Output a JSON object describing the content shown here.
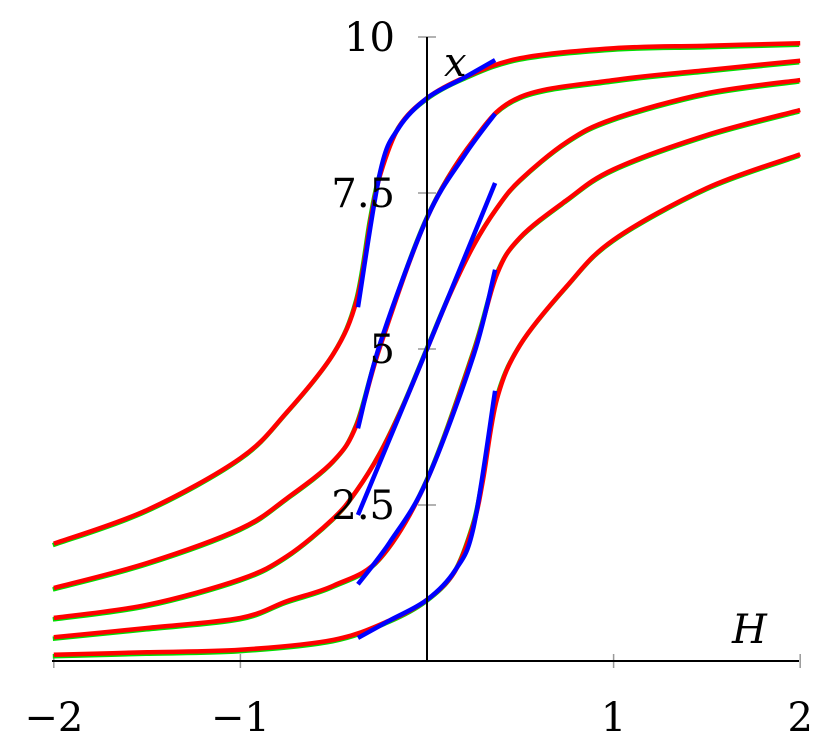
{
  "chart_data": {
    "type": "line",
    "xlabel": "H",
    "ylabel": "x",
    "xlim": [
      -2,
      2
    ],
    "ylim": [
      0,
      10
    ],
    "x_ticks": [
      {
        "value": -2,
        "label": "−2"
      },
      {
        "value": -1,
        "label": "−1"
      },
      {
        "value": 1,
        "label": "1"
      },
      {
        "value": 2,
        "label": "2"
      }
    ],
    "y_ticks": [
      {
        "value": 2.5,
        "label": "2.5"
      },
      {
        "value": 5,
        "label": "5"
      },
      {
        "value": 7.5,
        "label": "7.5"
      },
      {
        "value": 10,
        "label": "10"
      }
    ],
    "grid": false,
    "axes_through_origin": true,
    "colors": {
      "red": "#ff0000",
      "blue": "#0000ff",
      "green_underlay": "#00dd00",
      "axis": "#000000",
      "tick": "#999999"
    },
    "series": [
      {
        "color": "red",
        "points": [
          [
            -2,
            1.88
          ],
          [
            -1.5,
            2.42
          ],
          [
            -1,
            3.25
          ],
          [
            -0.75,
            3.99
          ],
          [
            -0.5,
            4.93
          ],
          [
            -0.375,
            5.8
          ],
          [
            -0.3,
            7.1
          ],
          [
            -0.25,
            7.8
          ],
          [
            -0.15,
            8.56
          ],
          [
            0,
            9.02
          ],
          [
            0.2,
            9.35
          ],
          [
            0.5,
            9.66
          ],
          [
            1,
            9.82
          ],
          [
            1.5,
            9.86
          ],
          [
            2,
            9.9
          ]
        ]
      },
      {
        "color": "red",
        "points": [
          [
            -2,
            1.17
          ],
          [
            -1.5,
            1.57
          ],
          [
            -1,
            2.12
          ],
          [
            -0.75,
            2.61
          ],
          [
            -0.5,
            3.21
          ],
          [
            -0.375,
            3.8
          ],
          [
            -0.25,
            5.05
          ],
          [
            0,
            7.1
          ],
          [
            0.25,
            8.35
          ],
          [
            0.5,
            9.04
          ],
          [
            1,
            9.31
          ],
          [
            1.5,
            9.47
          ],
          [
            2,
            9.62
          ]
        ]
      },
      {
        "color": "red",
        "points": [
          [
            -2,
            0.69
          ],
          [
            -1.5,
            0.9
          ],
          [
            -1,
            1.31
          ],
          [
            -0.75,
            1.68
          ],
          [
            -0.5,
            2.29
          ],
          [
            -0.375,
            2.74
          ],
          [
            -0.25,
            3.34
          ],
          [
            -0.125,
            4.11
          ],
          [
            0,
            5
          ],
          [
            0.125,
            5.89
          ],
          [
            0.25,
            6.66
          ],
          [
            0.375,
            7.26
          ],
          [
            0.5,
            7.71
          ],
          [
            0.75,
            8.32
          ],
          [
            1,
            8.69
          ],
          [
            1.5,
            9.1
          ],
          [
            2,
            9.31
          ]
        ]
      },
      {
        "color": "red",
        "points": [
          [
            -2,
            0.38
          ],
          [
            -1.5,
            0.53
          ],
          [
            -1,
            0.69
          ],
          [
            -0.75,
            0.96
          ],
          [
            -0.5,
            1.21
          ],
          [
            -0.25,
            1.65
          ],
          [
            0,
            2.9
          ],
          [
            0.25,
            4.95
          ],
          [
            0.375,
            6.2
          ],
          [
            0.5,
            6.79
          ],
          [
            0.75,
            7.39
          ],
          [
            1,
            7.88
          ],
          [
            1.5,
            8.43
          ],
          [
            2,
            8.83
          ]
        ]
      },
      {
        "color": "red",
        "points": [
          [
            -2,
            0.1
          ],
          [
            -1.5,
            0.14
          ],
          [
            -1,
            0.18
          ],
          [
            -0.5,
            0.34
          ],
          [
            -0.2,
            0.65
          ],
          [
            0,
            0.98
          ],
          [
            0.15,
            1.44
          ],
          [
            0.25,
            2.2
          ],
          [
            0.3,
            2.9
          ],
          [
            0.375,
            4.2
          ],
          [
            0.5,
            5.07
          ],
          [
            0.75,
            6.01
          ],
          [
            1,
            6.75
          ],
          [
            1.5,
            7.58
          ],
          [
            2,
            8.12
          ]
        ]
      },
      {
        "color": "blue",
        "points": [
          [
            -0.37,
            5.67
          ],
          [
            -0.25,
            7.85
          ],
          [
            -0.15,
            8.55
          ],
          [
            0,
            9.02
          ],
          [
            0.2,
            9.35
          ],
          [
            0.365,
            9.63
          ]
        ]
      },
      {
        "color": "blue",
        "points": [
          [
            -0.37,
            3.73
          ],
          [
            -0.25,
            5.1
          ],
          [
            0,
            7.1
          ],
          [
            0.2,
            8.1
          ],
          [
            0.365,
            8.77
          ]
        ]
      },
      {
        "color": "blue",
        "points": [
          [
            -0.37,
            2.34
          ],
          [
            0,
            5
          ],
          [
            0.365,
            7.66
          ]
        ]
      },
      {
        "color": "blue",
        "points": [
          [
            -0.37,
            1.23
          ],
          [
            -0.2,
            1.9
          ],
          [
            0,
            2.9
          ],
          [
            0.25,
            4.9
          ],
          [
            0.365,
            6.27
          ]
        ]
      },
      {
        "color": "blue",
        "points": [
          [
            -0.37,
            0.37
          ],
          [
            -0.2,
            0.65
          ],
          [
            0,
            0.98
          ],
          [
            0.15,
            1.45
          ],
          [
            0.25,
            2.15
          ],
          [
            0.365,
            4.33
          ]
        ]
      }
    ]
  }
}
